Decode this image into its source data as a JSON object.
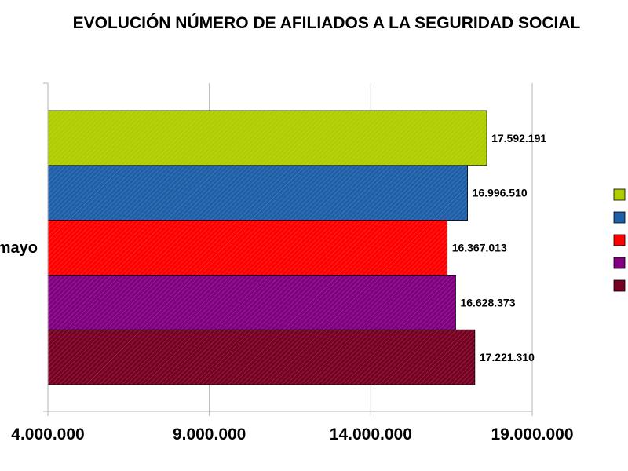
{
  "chart_data": {
    "type": "bar",
    "orientation": "horizontal",
    "title": "EVOLUCIÓN NÚMERO DE AFILIADOS A LA SEGURIDAD SOCIAL",
    "xlabel": "",
    "ylabel": "",
    "categories": [
      "mayo"
    ],
    "xlim": [
      4000000,
      19000000
    ],
    "x_ticks": [
      4000000,
      9000000,
      14000000,
      19000000
    ],
    "x_tick_labels": [
      "4.000.000",
      "9.000.000",
      "14.000.000",
      "19.000.000"
    ],
    "grid": true,
    "legend": "right",
    "series": [
      {
        "color": "#780022",
        "values": [
          17221310
        ],
        "label": "17.221.310"
      },
      {
        "color": "#800080",
        "values": [
          16628373
        ],
        "label": "16.628.373"
      },
      {
        "color": "#ff0000",
        "values": [
          16367013
        ],
        "label": "16.367.013"
      },
      {
        "color": "#1f5fa8",
        "values": [
          16996510
        ],
        "label": "16.996.510"
      },
      {
        "color": "#b0cd00",
        "values": [
          17592191
        ],
        "label": "17.592.191"
      }
    ]
  }
}
